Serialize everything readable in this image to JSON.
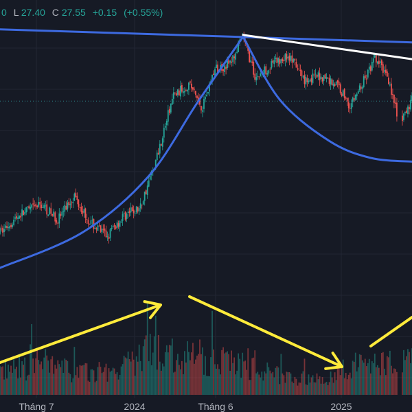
{
  "header": {
    "ohlc": {
      "prefix_glyph": "0",
      "low_label": "L",
      "low": "27.40",
      "close_label": "C",
      "close": "27.55",
      "change": "+0.15",
      "change_pct": "(+0.55%)"
    }
  },
  "colors": {
    "background": "#161a25",
    "up": "#26a69a",
    "down": "#ef5350",
    "trendline": "#3d6ae0",
    "annotation_white": "#ffffff",
    "annotation_yellow": "#ffeb3b",
    "grid": "#222633",
    "price_line": "#2a7f85"
  },
  "chart_data": {
    "type": "candlestick",
    "x_axis": {
      "tick_labels": [
        "Tháng 7",
        "2024",
        "Tháng 6",
        "2025"
      ]
    },
    "price_range_visible": [
      17.5,
      31.5
    ],
    "current_price_line": 27.55,
    "price_path": [
      {
        "t": 0,
        "p": 20.5
      },
      {
        "t": 5,
        "p": 21.5
      },
      {
        "t": 10,
        "p": 22.0
      },
      {
        "t": 14,
        "p": 21.2
      },
      {
        "t": 18,
        "p": 22.5
      },
      {
        "t": 22,
        "p": 21.0
      },
      {
        "t": 26,
        "p": 20.3
      },
      {
        "t": 30,
        "p": 21.4
      },
      {
        "t": 34,
        "p": 21.8
      },
      {
        "t": 38,
        "p": 24.5
      },
      {
        "t": 42,
        "p": 27.8
      },
      {
        "t": 46,
        "p": 28.5
      },
      {
        "t": 49,
        "p": 27.2
      },
      {
        "t": 52,
        "p": 29.2
      },
      {
        "t": 56,
        "p": 29.6
      },
      {
        "t": 59,
        "p": 31.0
      },
      {
        "t": 62,
        "p": 28.8
      },
      {
        "t": 66,
        "p": 29.5
      },
      {
        "t": 70,
        "p": 30.0
      },
      {
        "t": 74,
        "p": 28.7
      },
      {
        "t": 78,
        "p": 28.9
      },
      {
        "t": 82,
        "p": 28.4
      },
      {
        "t": 85,
        "p": 27.3
      },
      {
        "t": 88,
        "p": 28.5
      },
      {
        "t": 91,
        "p": 29.8
      },
      {
        "t": 94,
        "p": 29.0
      },
      {
        "t": 97,
        "p": 26.2
      },
      {
        "t": 100,
        "p": 27.6
      }
    ],
    "volume_profile": [
      0.5,
      0.55,
      0.6,
      0.7,
      0.55,
      0.5,
      0.45,
      0.5,
      0.55,
      0.75,
      0.95,
      0.85,
      0.8,
      0.75,
      0.7,
      0.8,
      0.6,
      0.5,
      0.45,
      0.4,
      0.35,
      0.3,
      0.45,
      0.6,
      0.7,
      0.65,
      0.9,
      0.75
    ],
    "drawings": [
      {
        "kind": "trendline",
        "color": "trendline",
        "from": {
          "t": 0,
          "p": 31.4
        },
        "to": {
          "t": 100,
          "p": 30.7
        }
      },
      {
        "kind": "trendline",
        "color": "annotation_white",
        "from": {
          "t": 59,
          "p": 31.1
        },
        "to": {
          "t": 100,
          "p": 29.8
        }
      },
      {
        "kind": "arc",
        "color": "trendline",
        "points": [
          {
            "t": 0,
            "p": 18.6
          },
          {
            "t": 20,
            "p": 20.5
          },
          {
            "t": 36,
            "p": 23.5
          },
          {
            "t": 48,
            "p": 27.5
          },
          {
            "t": 59,
            "p": 31.0
          }
        ]
      },
      {
        "kind": "arc",
        "color": "trendline",
        "points": [
          {
            "t": 59,
            "p": 31.0
          },
          {
            "t": 68,
            "p": 27.6
          },
          {
            "t": 80,
            "p": 25.4
          },
          {
            "t": 90,
            "p": 24.5
          },
          {
            "t": 100,
            "p": 24.3
          }
        ]
      }
    ],
    "volume_arrows": [
      {
        "color": "annotation_yellow",
        "from": [
          0.0,
          0.88
        ],
        "to": [
          0.39,
          0.74
        ]
      },
      {
        "color": "annotation_yellow",
        "from": [
          0.46,
          0.72
        ],
        "to": [
          0.83,
          0.89
        ]
      },
      {
        "color": "annotation_yellow",
        "from": [
          0.9,
          0.84
        ],
        "to": [
          1.0,
          0.77
        ]
      }
    ]
  }
}
